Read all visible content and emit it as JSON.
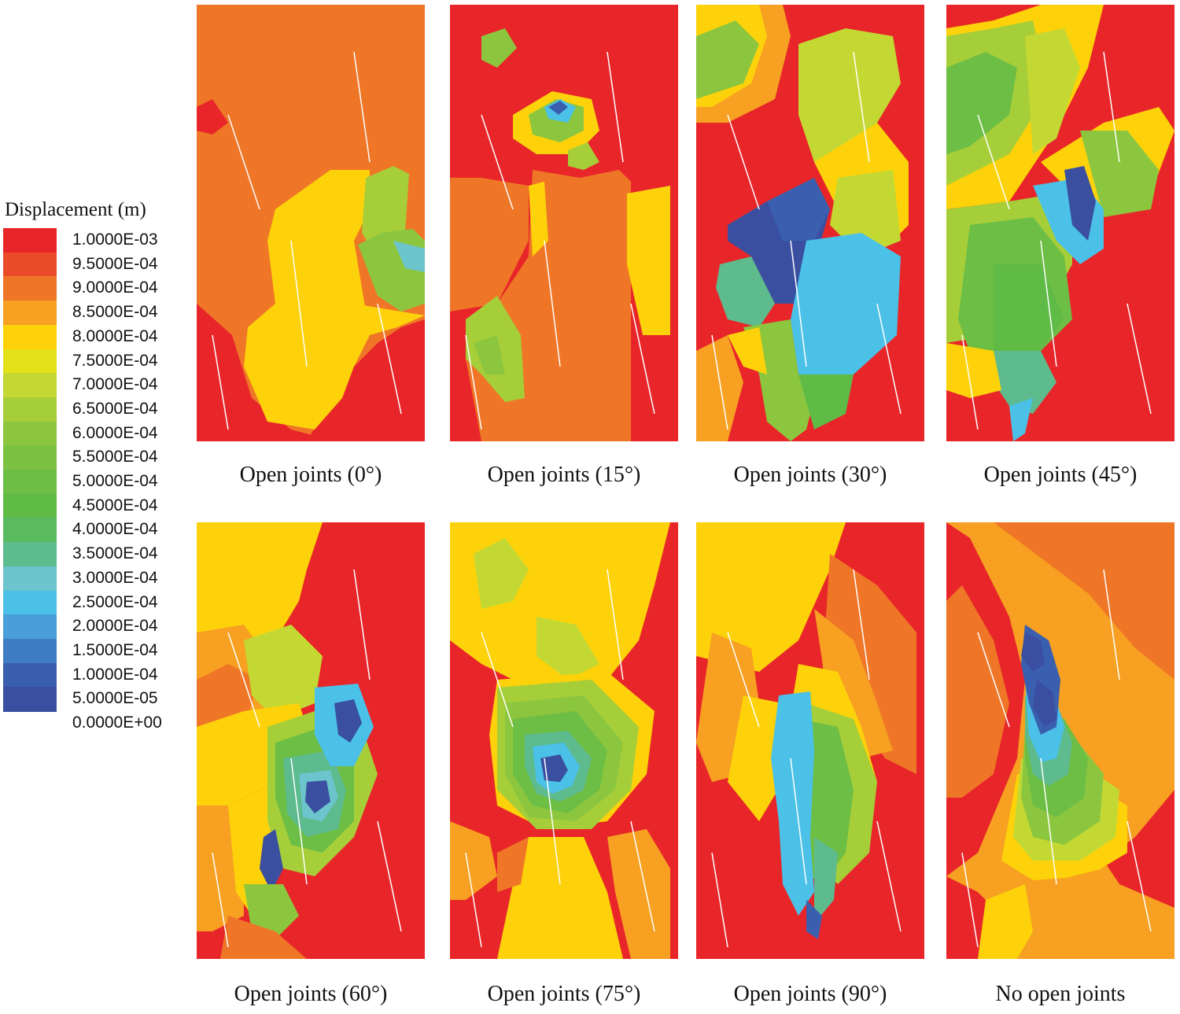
{
  "legend": {
    "title": "Displacement (m)",
    "levels": [
      {
        "label": "1.0000E-03",
        "color": "#e8262a"
      },
      {
        "label": "9.5000E-04",
        "color": "#ea4b2a"
      },
      {
        "label": "9.0000E-04",
        "color": "#ef7627"
      },
      {
        "label": "8.5000E-04",
        "color": "#f7a022"
      },
      {
        "label": "8.0000E-04",
        "color": "#fdd20a"
      },
      {
        "label": "7.5000E-04",
        "color": "#e3e21a"
      },
      {
        "label": "7.0000E-04",
        "color": "#c4d833"
      },
      {
        "label": "6.5000E-04",
        "color": "#a6ce39"
      },
      {
        "label": "6.0000E-04",
        "color": "#8cc63f"
      },
      {
        "label": "5.5000E-04",
        "color": "#7cc242"
      },
      {
        "label": "5.0000E-04",
        "color": "#6dbe45"
      },
      {
        "label": "4.5000E-04",
        "color": "#5fba46"
      },
      {
        "label": "4.0000E-04",
        "color": "#5aba5e"
      },
      {
        "label": "3.5000E-04",
        "color": "#5dbb8e"
      },
      {
        "label": "3.0000E-04",
        "color": "#6cc4cc"
      },
      {
        "label": "2.5000E-04",
        "color": "#4bc1e8"
      },
      {
        "label": "2.0000E-04",
        "color": "#4a9fd8"
      },
      {
        "label": "1.5000E-04",
        "color": "#3f7cc4"
      },
      {
        "label": "1.0000E-04",
        "color": "#3a5fae"
      },
      {
        "label": "5.0000E-05",
        "color": "#3a4fa0"
      },
      {
        "label": "0.0000E+00",
        "color": ""
      }
    ]
  },
  "panels": [
    {
      "name": "open-joints-0",
      "caption": "Open joints (0°)",
      "base": "#ef7627",
      "layers": [
        {
          "c": "#e8262a",
          "p": "0,380 45,420 70,500 120,540 150,548 150,555 0,555"
        },
        {
          "c": "#e8262a",
          "p": "190,470 230,430 260,410 290,400 290,555 140,555"
        },
        {
          "c": "#fdd20a",
          "p": "100,260 170,210 220,210 220,260 200,300 220,420 200,460 185,500 150,540 90,530 60,460 65,410 100,380 90,300"
        },
        {
          "c": "#a6ce39",
          "p": "215,220 250,205 270,215 265,290 235,330 210,290"
        },
        {
          "c": "#8cc63f",
          "p": "205,305 235,290 275,285 290,300 290,380 260,390 230,370"
        },
        {
          "c": "#6cc4cc",
          "p": "250,300 290,310 290,340 265,335"
        },
        {
          "c": "#fdd20a",
          "p": "200,380 260,390 290,395 255,410 220,420"
        },
        {
          "c": "#e8262a",
          "p": "0,130 20,120 40,150 20,165 0,160"
        }
      ]
    },
    {
      "name": "open-joints-15",
      "caption": "Open joints (15°)",
      "base": "#e8262a",
      "layers": [
        {
          "c": "#ef7627",
          "p": "105,210 165,220 215,210 230,225 230,555 40,555 20,450 60,380 100,320"
        },
        {
          "c": "#ef7627",
          "p": "0,220 40,220 100,230 100,300 60,380 0,390"
        },
        {
          "c": "#fdd20a",
          "p": "225,240 280,230 280,420 245,420 225,330"
        },
        {
          "c": "#fdd20a",
          "p": "100,230 120,225 125,300 105,320"
        },
        {
          "c": "#a6ce39",
          "p": "20,400 60,370 90,420 95,500 70,505 40,470 20,450"
        },
        {
          "c": "#8cc63f",
          "p": "30,430 60,420 70,470 45,470"
        },
        {
          "c": "#fdd20a",
          "p": "80,140 130,110 180,120 190,160 160,190 110,190 80,170"
        },
        {
          "c": "#8cc63f",
          "p": "100,140 135,120 170,130 170,160 140,175 105,165"
        },
        {
          "c": "#4bc1e8",
          "p": "120,130 140,120 160,130 150,150 125,145"
        },
        {
          "c": "#3a5fae",
          "p": "125,130 140,122 150,130 138,140"
        },
        {
          "c": "#a6ce39",
          "p": "150,185 175,175 190,200 170,210 150,205"
        },
        {
          "c": "#8cc63f",
          "p": "40,40 70,30 85,55 60,80 40,70"
        }
      ]
    },
    {
      "name": "open-joints-30",
      "caption": "Open joints (30°)",
      "base": "#e8262a",
      "layers": [
        {
          "c": "#f7a022",
          "p": "0,0 110,0 120,40 100,120 40,150 0,150"
        },
        {
          "c": "#fdd20a",
          "p": "0,0 80,0 90,40 70,100 20,130 0,130"
        },
        {
          "c": "#8cc63f",
          "p": "0,40 50,20 80,50 60,100 0,120"
        },
        {
          "c": "#c4d833",
          "p": "130,50 190,30 250,40 260,100 230,150 200,210 150,200 130,140"
        },
        {
          "c": "#fdd20a",
          "p": "150,200 230,150 270,200 270,280 250,300 180,260"
        },
        {
          "c": "#c4d833",
          "p": "180,220 250,210 260,300 210,320 170,280"
        },
        {
          "c": "#3a4fa0",
          "p": "40,280 90,250 150,220 170,260 150,330 130,380 100,380 70,320 40,300"
        },
        {
          "c": "#3a5fae",
          "p": "90,250 150,220 170,260 150,300 110,300"
        },
        {
          "c": "#5dbb8e",
          "p": "30,330 70,320 100,380 80,410 40,400 25,360"
        },
        {
          "c": "#4bc1e8",
          "p": "140,300 210,290 260,320 255,420 200,470 130,470 120,400"
        },
        {
          "c": "#8cc63f",
          "p": "60,410 120,400 130,470 150,500 140,540 120,555 90,530 80,470"
        },
        {
          "c": "#5fba46",
          "p": "130,470 200,470 190,520 150,540"
        },
        {
          "c": "#fdd20a",
          "p": "40,420 80,410 90,470 60,460"
        },
        {
          "c": "#f7a022",
          "p": "0,440 40,420 60,480 40,555 0,555"
        }
      ]
    },
    {
      "name": "open-joints-45",
      "caption": "Open joints (45°)",
      "base": "#e8262a",
      "layers": [
        {
          "c": "#fdd20a",
          "p": "0,30 60,20 120,0 200,0 180,80 140,160 80,250 0,260"
        },
        {
          "c": "#a6ce39",
          "p": "0,40 60,30 110,20 130,110 80,190 0,230"
        },
        {
          "c": "#6dbe45",
          "p": "0,80 50,60 90,80 80,140 30,180 0,190"
        },
        {
          "c": "#c4d833",
          "p": "100,40 150,30 170,80 140,170 110,190"
        },
        {
          "c": "#fdd20a",
          "p": "120,200 200,150 270,130 290,160 260,240 180,260"
        },
        {
          "c": "#8cc63f",
          "p": "170,160 230,160 270,210 260,260 200,270"
        },
        {
          "c": "#a6ce39",
          "p": "0,260 80,250 140,240 160,270 160,330 120,400 60,420 0,430"
        },
        {
          "c": "#6dbe45",
          "p": "30,280 110,270 150,320 160,400 100,460 40,470 15,400"
        },
        {
          "c": "#5fba46",
          "p": "60,330 120,330 150,400 110,450 60,440"
        },
        {
          "c": "#4bc1e8",
          "p": "110,230 170,220 200,260 200,310 170,330 140,300"
        },
        {
          "c": "#3a4fa0",
          "p": "150,210 175,205 190,250 180,300 160,280"
        },
        {
          "c": "#5dbb8e",
          "p": "60,440 120,440 140,480 110,520 80,510 60,480"
        },
        {
          "c": "#fdd20a",
          "p": "0,430 60,440 70,490 30,500 0,490"
        },
        {
          "c": "#4bc1e8",
          "p": "80,510 110,500 100,545 85,555"
        }
      ]
    },
    {
      "name": "open-joints-60",
      "caption": "Open joints (60°)",
      "base": "#e8262a",
      "layers": [
        {
          "c": "#fdd20a",
          "p": "0,0 160,0 140,60 130,100 100,150 60,180 0,200"
        },
        {
          "c": "#f7a022",
          "p": "0,140 60,130 110,200 100,260 40,260 0,240"
        },
        {
          "c": "#ef7627",
          "p": "0,200 40,180 80,200 60,260 0,260"
        },
        {
          "c": "#c4d833",
          "p": "60,150 120,130 160,170 150,230 100,250 70,220"
        },
        {
          "c": "#fdd20a",
          "p": "0,260 60,240 130,230 150,290 100,330 40,360 0,360"
        },
        {
          "c": "#f7a022",
          "p": "0,360 40,360 60,420 60,500 20,520 0,520"
        },
        {
          "c": "#fdd20a",
          "p": "40,360 100,330 130,380 100,460 70,500 50,470"
        },
        {
          "c": "#a6ce39",
          "p": "90,260 150,240 210,260 230,320 200,400 150,450 110,440 90,380"
        },
        {
          "c": "#6dbe45",
          "p": "100,280 160,260 200,300 200,380 160,420 120,410 100,350"
        },
        {
          "c": "#5dbb8e",
          "p": "110,300 170,290 190,340 180,390 140,400 115,370"
        },
        {
          "c": "#6cc4cc",
          "p": "130,320 170,315 180,350 160,380 135,375"
        },
        {
          "c": "#3a4fa0",
          "p": "140,330 165,328 170,355 150,370 138,355"
        },
        {
          "c": "#3a5fae",
          "p": "165,230 200,220 215,250 205,290 180,300 170,270"
        },
        {
          "c": "#4bc1e8",
          "p": "150,210 205,205 225,260 200,310 170,310 150,270"
        },
        {
          "c": "#3a4fa0",
          "p": "175,230 200,225 210,255 195,280 180,270"
        },
        {
          "c": "#3a4fa0",
          "p": "85,400 100,390 110,440 95,470 80,440"
        },
        {
          "c": "#8cc63f",
          "p": "60,460 110,460 130,500 100,530 70,520"
        },
        {
          "c": "#ef7627",
          "p": "40,500 100,520 140,555 30,555"
        }
      ]
    },
    {
      "name": "open-joints-75",
      "caption": "Open joints (75°)",
      "base": "#e8262a",
      "layers": [
        {
          "c": "#fdd20a",
          "p": "0,0 280,0 260,80 240,150 200,200 100,210 40,180 0,150"
        },
        {
          "c": "#c4d833",
          "p": "30,40 70,20 100,60 80,100 40,110"
        },
        {
          "c": "#c4d833",
          "p": "110,120 160,130 190,180 150,200 110,170"
        },
        {
          "c": "#fdd20a",
          "p": "60,200 200,190 260,240 250,320 200,380 120,390 60,360 50,270"
        },
        {
          "c": "#a6ce39",
          "p": "60,210 180,200 240,260 230,340 180,390 110,390 60,340"
        },
        {
          "c": "#8cc63f",
          "p": "70,230 170,220 220,280 210,340 160,380 100,375 70,320"
        },
        {
          "c": "#6dbe45",
          "p": "80,250 160,240 200,290 190,340 150,370 105,360 80,320"
        },
        {
          "c": "#5dbb8e",
          "p": "95,270 150,265 180,300 170,340 140,355 110,345 95,310"
        },
        {
          "c": "#4bc1e8",
          "p": "105,285 145,280 165,310 155,335 130,345 110,330"
        },
        {
          "c": "#3a4fa0",
          "p": "115,300 140,295 150,315 140,330 120,328"
        },
        {
          "c": "#f7a022",
          "p": "0,380 50,400 60,450 20,480 0,480"
        },
        {
          "c": "#fdd20a",
          "p": "100,400 170,400 200,470 220,555 60,555 80,460"
        },
        {
          "c": "#ef7627",
          "p": "60,420 100,400 90,460 60,470"
        },
        {
          "c": "#f7a022",
          "p": "200,400 250,390 280,440 280,555 230,555 210,470"
        }
      ]
    },
    {
      "name": "open-joints-90",
      "caption": "Open joints (90°)",
      "base": "#e8262a",
      "layers": [
        {
          "c": "#fdd20a",
          "p": "0,0 190,0 170,60 130,150 80,190 0,170"
        },
        {
          "c": "#ef7627",
          "p": "170,40 230,80 280,140 280,320 240,300 200,240 160,200"
        },
        {
          "c": "#f7a022",
          "p": "150,110 200,150 230,230 250,290 210,300 170,240"
        },
        {
          "c": "#fdd20a",
          "p": "130,180 180,190 210,260 230,330 200,420 170,440 140,400 110,300"
        },
        {
          "c": "#f7a022",
          "p": "20,140 70,160 80,230 60,320 20,330 0,280"
        },
        {
          "c": "#fdd20a",
          "p": "60,220 110,230 110,330 80,380 40,330"
        },
        {
          "c": "#a6ce39",
          "p": "140,230 200,250 230,330 220,420 180,460 150,430 130,350"
        },
        {
          "c": "#6dbe45",
          "p": "130,250 180,260 200,340 190,420 160,460 130,440 120,350"
        },
        {
          "c": "#4bc1e8",
          "p": "105,220 145,215 150,290 145,400 150,470 130,500 110,460 105,380 95,300"
        },
        {
          "c": "#5dbb8e",
          "p": "150,400 180,420 175,480 150,510"
        },
        {
          "c": "#3a5fae",
          "p": "140,480 160,500 155,530 140,520"
        }
      ]
    },
    {
      "name": "no-open-joints",
      "caption": "No open joints",
      "base": "#f7a022",
      "layers": [
        {
          "c": "#ef7627",
          "p": "60,0 290,0 290,200 240,160 180,90 100,30"
        },
        {
          "c": "#e8262a",
          "p": "0,0 30,20 80,120 100,200 90,300 40,420 0,450"
        },
        {
          "c": "#ef7627",
          "p": "20,80 60,150 80,230 60,320 20,350 0,350 0,100"
        },
        {
          "c": "#e8262a",
          "p": "290,340 240,400 200,430 220,460 290,490"
        },
        {
          "c": "#e8262a",
          "p": "0,450 40,470 90,520 80,555 0,555"
        },
        {
          "c": "#fdd20a",
          "p": "90,320 160,320 230,360 230,420 180,450 110,455 70,430"
        },
        {
          "c": "#c4d833",
          "p": "95,300 160,300 220,340 215,400 170,430 110,430 85,400"
        },
        {
          "c": "#8cc63f",
          "p": "100,260 160,270 200,320 195,380 150,410 110,400 95,350"
        },
        {
          "c": "#6dbe45",
          "p": "100,240 150,250 180,300 175,350 140,375 110,360 100,300"
        },
        {
          "c": "#5dbb8e",
          "p": "100,220 140,230 160,280 155,320 130,335 110,320 100,270"
        },
        {
          "c": "#4bc1e8",
          "p": "100,200 135,210 150,260 140,300 120,305 105,270"
        },
        {
          "c": "#3a5fae",
          "p": "100,130 130,150 145,200 140,260 120,270 105,230 95,180"
        },
        {
          "c": "#3a4fa0",
          "p": "100,140 120,150 125,180 110,190 95,170"
        },
        {
          "c": "#3a4fa0",
          "p": "115,200 135,215 140,250 125,260 110,235"
        },
        {
          "c": "#fdd20a",
          "p": "50,480 100,460 110,520 90,555 40,555"
        },
        {
          "c": "#f7a022",
          "p": "120,460 200,440 240,480 260,555 110,555"
        }
      ]
    }
  ]
}
